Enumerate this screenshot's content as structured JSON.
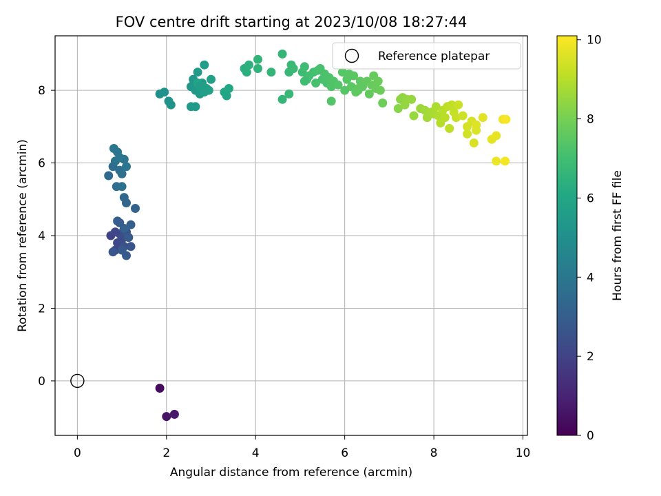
{
  "chart_data": {
    "type": "scatter",
    "title": "FOV centre drift starting at 2023/10/08 18:27:44",
    "xlabel": "Angular distance from reference (arcmin)",
    "ylabel": "Rotation from reference (arcmin)",
    "xlim": [
      -0.5,
      10.1
    ],
    "ylim": [
      -1.5,
      9.5
    ],
    "xticks": [
      0,
      2,
      4,
      6,
      8,
      10
    ],
    "yticks": [
      0,
      2,
      4,
      6,
      8
    ],
    "grid": true,
    "legend": {
      "position": "top-right",
      "label": "Reference platepar"
    },
    "reference_point": {
      "x": 0,
      "y": 0
    },
    "colorbar": {
      "label": "Hours from first FF file",
      "min": 0,
      "max": 10.1,
      "ticks": [
        0,
        2,
        4,
        6,
        8,
        10
      ],
      "colormap": "viridis"
    },
    "points": [
      [
        1.85,
        -0.2,
        0.3
      ],
      [
        2.0,
        -0.98,
        0.5
      ],
      [
        2.18,
        -0.92,
        0.7
      ],
      [
        0.75,
        4.0,
        2.0
      ],
      [
        0.85,
        3.6,
        2.1
      ],
      [
        0.9,
        3.8,
        2.2
      ],
      [
        1.0,
        3.9,
        2.3
      ],
      [
        0.95,
        4.05,
        2.4
      ],
      [
        1.05,
        3.7,
        2.5
      ],
      [
        1.1,
        4.1,
        2.6
      ],
      [
        0.8,
        3.55,
        2.7
      ],
      [
        1.0,
        3.6,
        2.8
      ],
      [
        1.15,
        3.95,
        2.9
      ],
      [
        1.2,
        4.3,
        3.0
      ],
      [
        0.9,
        4.4,
        3.05
      ],
      [
        1.05,
        4.2,
        3.1
      ],
      [
        1.3,
        4.75,
        3.2
      ],
      [
        1.1,
        4.9,
        3.3
      ],
      [
        1.05,
        5.05,
        3.35
      ],
      [
        1.2,
        3.7,
        2.65
      ],
      [
        1.1,
        3.45,
        2.85
      ],
      [
        0.95,
        4.35,
        2.95
      ],
      [
        0.85,
        4.1,
        2.15
      ],
      [
        0.7,
        5.65,
        3.5
      ],
      [
        0.8,
        5.9,
        3.55
      ],
      [
        0.88,
        5.35,
        3.6
      ],
      [
        0.95,
        5.8,
        3.65
      ],
      [
        1.0,
        5.7,
        3.7
      ],
      [
        1.05,
        6.1,
        3.8
      ],
      [
        0.85,
        6.05,
        3.85
      ],
      [
        0.9,
        6.3,
        3.9
      ],
      [
        0.82,
        6.4,
        3.95
      ],
      [
        1.0,
        5.35,
        3.75
      ],
      [
        1.1,
        5.9,
        3.9
      ],
      [
        0.95,
        6.15,
        4.0
      ],
      [
        1.85,
        7.9,
        5.0
      ],
      [
        1.95,
        7.95,
        5.05
      ],
      [
        2.05,
        7.7,
        5.1
      ],
      [
        2.1,
        7.6,
        5.15
      ],
      [
        2.55,
        8.1,
        5.3
      ],
      [
        2.6,
        8.3,
        5.35
      ],
      [
        2.65,
        8.0,
        5.4
      ],
      [
        2.7,
        8.5,
        5.45
      ],
      [
        2.75,
        7.9,
        5.5
      ],
      [
        2.8,
        8.2,
        5.55
      ],
      [
        2.85,
        8.7,
        5.6
      ],
      [
        2.9,
        8.05,
        5.65
      ],
      [
        3.0,
        8.3,
        5.7
      ],
      [
        2.95,
        8.0,
        5.75
      ],
      [
        2.7,
        8.2,
        5.8
      ],
      [
        2.65,
        7.55,
        5.5
      ],
      [
        2.55,
        7.55,
        5.45
      ],
      [
        2.75,
        8.1,
        5.6
      ],
      [
        2.85,
        7.95,
        5.65
      ],
      [
        3.3,
        7.95,
        5.9
      ],
      [
        3.4,
        8.05,
        6.0
      ],
      [
        3.35,
        7.85,
        5.95
      ],
      [
        3.75,
        8.6,
        6.3
      ],
      [
        3.8,
        8.5,
        6.35
      ],
      [
        3.85,
        8.7,
        6.4
      ],
      [
        4.05,
        8.6,
        6.5
      ],
      [
        4.05,
        8.85,
        6.55
      ],
      [
        4.35,
        8.5,
        6.6
      ],
      [
        4.6,
        9.0,
        6.65
      ],
      [
        4.75,
        8.5,
        6.7
      ],
      [
        4.8,
        8.7,
        6.75
      ],
      [
        4.85,
        8.6,
        6.8
      ],
      [
        4.6,
        7.75,
        6.65
      ],
      [
        4.75,
        7.9,
        6.7
      ],
      [
        5.05,
        8.5,
        6.9
      ],
      [
        5.1,
        8.65,
        6.95
      ],
      [
        5.15,
        8.3,
        7.0
      ],
      [
        5.2,
        8.4,
        7.0
      ],
      [
        5.3,
        8.5,
        7.05
      ],
      [
        5.35,
        8.2,
        7.1
      ],
      [
        5.4,
        8.55,
        7.1
      ],
      [
        5.45,
        8.6,
        7.15
      ],
      [
        5.5,
        8.3,
        7.15
      ],
      [
        5.55,
        8.45,
        7.2
      ],
      [
        5.6,
        8.2,
        7.2
      ],
      [
        5.65,
        8.35,
        7.25
      ],
      [
        5.7,
        8.1,
        7.3
      ],
      [
        5.75,
        8.25,
        7.3
      ],
      [
        5.7,
        7.7,
        7.35
      ],
      [
        5.85,
        8.15,
        7.35
      ],
      [
        5.95,
        8.5,
        7.4
      ],
      [
        6.0,
        8.0,
        7.4
      ],
      [
        6.05,
        8.3,
        7.45
      ],
      [
        6.1,
        8.45,
        7.45
      ],
      [
        6.15,
        8.1,
        7.5
      ],
      [
        6.2,
        8.4,
        7.5
      ],
      [
        6.25,
        7.95,
        7.55
      ],
      [
        6.3,
        8.05,
        7.55
      ],
      [
        6.35,
        8.25,
        7.6
      ],
      [
        6.4,
        8.1,
        7.6
      ],
      [
        6.5,
        8.25,
        7.65
      ],
      [
        6.55,
        7.9,
        7.65
      ],
      [
        6.6,
        8.15,
        7.7
      ],
      [
        6.65,
        8.4,
        7.7
      ],
      [
        6.7,
        8.05,
        7.75
      ],
      [
        6.75,
        8.25,
        7.75
      ],
      [
        6.8,
        8.0,
        7.8
      ],
      [
        6.85,
        7.65,
        7.85
      ],
      [
        6.3,
        8.0,
        7.6
      ],
      [
        5.1,
        8.25,
        6.95
      ],
      [
        7.2,
        7.5,
        8.3
      ],
      [
        7.25,
        7.75,
        8.35
      ],
      [
        7.3,
        7.8,
        8.4
      ],
      [
        7.35,
        7.6,
        8.45
      ],
      [
        7.4,
        7.75,
        8.5
      ],
      [
        7.5,
        7.75,
        8.5
      ],
      [
        7.55,
        7.3,
        8.55
      ],
      [
        7.7,
        7.5,
        8.6
      ],
      [
        7.8,
        7.45,
        8.65
      ],
      [
        7.85,
        7.25,
        8.7
      ],
      [
        7.95,
        7.4,
        8.75
      ],
      [
        8.0,
        7.35,
        8.8
      ],
      [
        8.05,
        7.55,
        8.85
      ],
      [
        8.1,
        7.3,
        8.9
      ],
      [
        8.15,
        7.1,
        8.95
      ],
      [
        8.2,
        7.45,
        9.0
      ],
      [
        8.25,
        7.25,
        9.05
      ],
      [
        8.3,
        7.55,
        9.1
      ],
      [
        8.35,
        6.95,
        9.1
      ],
      [
        8.4,
        7.6,
        9.15
      ],
      [
        8.45,
        7.4,
        9.2
      ],
      [
        8.5,
        7.25,
        9.25
      ],
      [
        8.55,
        7.6,
        9.3
      ],
      [
        8.65,
        7.3,
        9.35
      ],
      [
        8.75,
        6.8,
        9.4
      ],
      [
        8.75,
        7.0,
        9.45
      ],
      [
        8.85,
        7.15,
        9.5
      ],
      [
        8.9,
        6.55,
        9.5
      ],
      [
        8.95,
        6.9,
        9.55
      ],
      [
        8.95,
        7.05,
        9.6
      ],
      [
        9.1,
        7.25,
        9.65
      ],
      [
        9.3,
        6.65,
        9.7
      ],
      [
        9.4,
        6.75,
        9.75
      ],
      [
        9.4,
        6.05,
        9.8
      ],
      [
        9.55,
        7.2,
        9.9
      ],
      [
        9.6,
        6.05,
        9.95
      ],
      [
        9.62,
        7.2,
        10.0
      ]
    ]
  }
}
